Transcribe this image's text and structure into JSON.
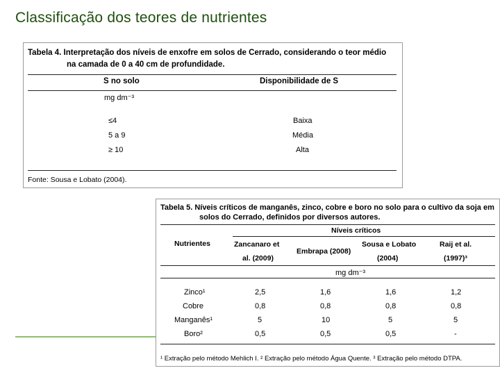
{
  "title": "Classificação dos teores de nutrientes",
  "table4": {
    "caption_line1": "Tabela 4. Interpretação dos níveis de enxofre em solos de Cerrado, considerando o teor médio",
    "caption_line2": "na camada de 0 a 40 cm de profundidade.",
    "header_col1": "S no solo",
    "header_col2": "Disponibilidade de S",
    "unit": "mg dm⁻³",
    "rows": [
      {
        "range": "≤4",
        "class": "Baixa"
      },
      {
        "range": "5 a 9",
        "class": "Média"
      },
      {
        "range": "≥ 10",
        "class": "Alta"
      }
    ],
    "source": "Fonte: Sousa e Lobato (2004)."
  },
  "table5": {
    "caption_line1": "Tabela 5. Níveis críticos de manganês, zinco, cobre e boro no solo para o cultivo da soja em",
    "caption_line2": "solos do Cerrado, definidos por diversos autores.",
    "group_header": "Níveis críticos",
    "col_nutrientes": "Nutrientes",
    "col_zanc_l1": "Zancanaro et",
    "col_zanc_l2": "al. (2009)",
    "col_embrapa": "Embrapa (2008)",
    "col_sousa_l1": "Sousa e Lobato",
    "col_sousa_l2": "(2004)",
    "col_raij_l1": "Raij et al.",
    "col_raij_l2": "(1997)³",
    "unit": "mg dm⁻³",
    "rows": [
      {
        "nutrient": "Zinco¹",
        "zanc": "2,5",
        "embrapa": "1,6",
        "sousa": "1,6",
        "raij": "1,2"
      },
      {
        "nutrient": "Cobre",
        "zanc": "0,8",
        "embrapa": "0,8",
        "sousa": "0,8",
        "raij": "0,8"
      },
      {
        "nutrient": "Manganês¹",
        "zanc": "5",
        "embrapa": "10",
        "sousa": "5",
        "raij": "5"
      },
      {
        "nutrient": "Boro²",
        "zanc": "0,5",
        "embrapa": "0,5",
        "sousa": "0,5",
        "raij": "-"
      }
    ],
    "footnote": "¹ Extração pelo método Mehlich I. ² Extração pelo método Água Quente. ³ Extração pelo método DTPA."
  }
}
